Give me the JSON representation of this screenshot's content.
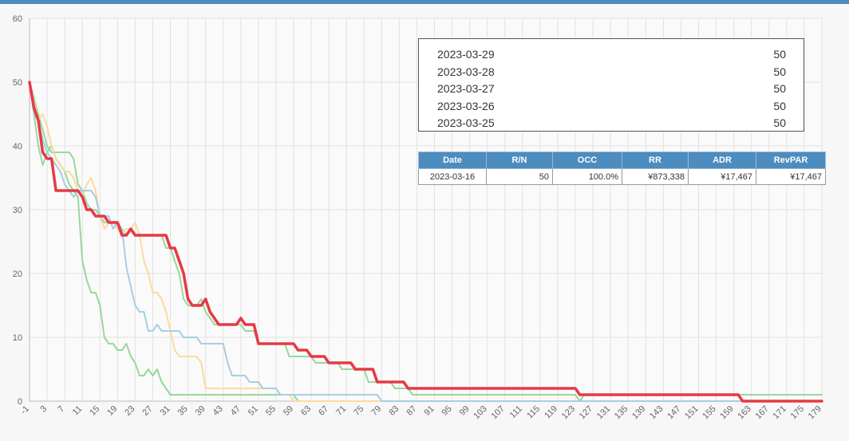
{
  "colors": {
    "topbar": "#4a8cc0",
    "header_bg": "#4d8cbf",
    "grid": "#e2e2e2",
    "axis": "#bbbbbb",
    "tick_text": "#666666"
  },
  "legend": [
    {
      "date": "2023-03-29",
      "value": "50",
      "color": "#e63946"
    },
    {
      "date": "2023-03-28",
      "value": "50",
      "color": "#a6cee3"
    },
    {
      "date": "2023-03-27",
      "value": "50",
      "color": "#fdd9a0"
    },
    {
      "date": "2023-03-26",
      "value": "50",
      "color": "#98d89a"
    },
    {
      "date": "2023-03-25",
      "value": "50",
      "color": "#98d89a"
    }
  ],
  "stats_table": {
    "headers": [
      "Date",
      "R/N",
      "OCC",
      "RR",
      "ADR",
      "RevPAR"
    ],
    "rows": [
      [
        "2023-03-16",
        "50",
        "100.0%",
        "¥873,338",
        "¥17,467",
        "¥17,467"
      ]
    ]
  },
  "chart_data": {
    "type": "line",
    "title": "",
    "xlabel": "",
    "ylabel": "",
    "xlim": [
      -1,
      179
    ],
    "ylim": [
      0,
      60
    ],
    "yticks": [
      0,
      10,
      20,
      30,
      40,
      50,
      60
    ],
    "xticks": [
      -1,
      3,
      7,
      11,
      15,
      19,
      23,
      27,
      31,
      35,
      39,
      43,
      47,
      51,
      55,
      59,
      63,
      67,
      71,
      75,
      79,
      83,
      87,
      91,
      95,
      99,
      103,
      107,
      111,
      115,
      119,
      123,
      127,
      131,
      135,
      139,
      143,
      147,
      151,
      155,
      159,
      163,
      167,
      171,
      175,
      179
    ],
    "grid": true,
    "legend_position": "top-right",
    "series": [
      {
        "color": "#98d89a",
        "points": [
          [
            -1,
            50
          ],
          [
            0,
            45
          ],
          [
            1,
            40
          ],
          [
            2,
            37
          ],
          [
            3,
            39
          ],
          [
            4,
            40
          ],
          [
            5,
            38
          ],
          [
            6,
            37
          ],
          [
            7,
            36
          ],
          [
            8,
            34
          ],
          [
            9,
            33
          ],
          [
            10,
            32
          ],
          [
            11,
            22
          ],
          [
            12,
            19
          ],
          [
            13,
            17
          ],
          [
            14,
            17
          ],
          [
            15,
            15
          ],
          [
            16,
            10
          ],
          [
            17,
            9
          ],
          [
            18,
            9
          ],
          [
            19,
            8
          ],
          [
            20,
            8
          ],
          [
            21,
            9
          ],
          [
            22,
            7
          ],
          [
            23,
            6
          ],
          [
            24,
            4
          ],
          [
            25,
            4
          ],
          [
            26,
            5
          ],
          [
            27,
            4
          ],
          [
            28,
            5
          ],
          [
            29,
            3
          ],
          [
            30,
            2
          ],
          [
            31,
            1
          ],
          [
            59,
            1
          ],
          [
            60,
            0
          ],
          [
            179,
            0
          ]
        ]
      },
      {
        "color": "#98d89a",
        "points": [
          [
            -1,
            50
          ],
          [
            1,
            45
          ],
          [
            3,
            40
          ],
          [
            4,
            39
          ],
          [
            8,
            39
          ],
          [
            9,
            38
          ],
          [
            10,
            34
          ],
          [
            11,
            33
          ],
          [
            12,
            31
          ],
          [
            13,
            30
          ],
          [
            14,
            30
          ],
          [
            15,
            29
          ],
          [
            16,
            28
          ],
          [
            17,
            28
          ],
          [
            18,
            28
          ],
          [
            19,
            28
          ],
          [
            20,
            27
          ],
          [
            21,
            26
          ],
          [
            22,
            27
          ],
          [
            23,
            26
          ],
          [
            29,
            26
          ],
          [
            30,
            24
          ],
          [
            31,
            24
          ],
          [
            32,
            22
          ],
          [
            33,
            20
          ],
          [
            34,
            16
          ],
          [
            35,
            15
          ],
          [
            36,
            15
          ],
          [
            37,
            15
          ],
          [
            38,
            16
          ],
          [
            39,
            14
          ],
          [
            40,
            13
          ],
          [
            41,
            12
          ],
          [
            47,
            12
          ],
          [
            48,
            11
          ],
          [
            50,
            11
          ],
          [
            51,
            9
          ],
          [
            57,
            9
          ],
          [
            58,
            7
          ],
          [
            63,
            7
          ],
          [
            64,
            6
          ],
          [
            69,
            6
          ],
          [
            70,
            5
          ],
          [
            75,
            5
          ],
          [
            76,
            3
          ],
          [
            81,
            3
          ],
          [
            82,
            2
          ],
          [
            85,
            2
          ],
          [
            86,
            1
          ],
          [
            123,
            1
          ],
          [
            124,
            0
          ],
          [
            125,
            1
          ],
          [
            179,
            1
          ]
        ]
      },
      {
        "color": "#fdd9a0",
        "points": [
          [
            -1,
            50
          ],
          [
            1,
            44
          ],
          [
            2,
            45
          ],
          [
            3,
            43
          ],
          [
            4,
            40
          ],
          [
            5,
            38
          ],
          [
            6,
            37
          ],
          [
            7,
            36
          ],
          [
            8,
            36
          ],
          [
            9,
            35
          ],
          [
            10,
            33
          ],
          [
            11,
            32
          ],
          [
            12,
            34
          ],
          [
            13,
            35
          ],
          [
            14,
            33
          ],
          [
            15,
            29
          ],
          [
            16,
            27
          ],
          [
            17,
            28
          ],
          [
            18,
            28
          ],
          [
            19,
            27
          ],
          [
            20,
            26
          ],
          [
            21,
            27
          ],
          [
            22,
            27
          ],
          [
            23,
            28
          ],
          [
            24,
            26
          ],
          [
            25,
            22
          ],
          [
            26,
            20
          ],
          [
            27,
            17
          ],
          [
            28,
            17
          ],
          [
            29,
            16
          ],
          [
            30,
            14
          ],
          [
            31,
            11
          ],
          [
            32,
            8
          ],
          [
            33,
            7
          ],
          [
            37,
            7
          ],
          [
            38,
            6
          ],
          [
            39,
            2
          ],
          [
            55,
            2
          ],
          [
            56,
            1
          ],
          [
            58,
            1
          ],
          [
            59,
            0
          ],
          [
            179,
            0
          ]
        ]
      },
      {
        "color": "#a6cee3",
        "points": [
          [
            -1,
            50
          ],
          [
            0,
            45
          ],
          [
            1,
            44
          ],
          [
            2,
            41
          ],
          [
            3,
            39
          ],
          [
            4,
            38
          ],
          [
            5,
            37
          ],
          [
            6,
            36
          ],
          [
            7,
            34
          ],
          [
            8,
            33
          ],
          [
            9,
            32
          ],
          [
            10,
            33
          ],
          [
            11,
            33
          ],
          [
            12,
            33
          ],
          [
            13,
            33
          ],
          [
            14,
            32
          ],
          [
            15,
            29
          ],
          [
            16,
            29
          ],
          [
            17,
            29
          ],
          [
            18,
            27
          ],
          [
            19,
            28
          ],
          [
            20,
            27
          ],
          [
            21,
            21
          ],
          [
            22,
            18
          ],
          [
            23,
            15
          ],
          [
            24,
            14
          ],
          [
            25,
            14
          ],
          [
            26,
            11
          ],
          [
            27,
            11
          ],
          [
            28,
            12
          ],
          [
            29,
            11
          ],
          [
            33,
            11
          ],
          [
            34,
            10
          ],
          [
            37,
            10
          ],
          [
            38,
            9
          ],
          [
            43,
            9
          ],
          [
            44,
            6
          ],
          [
            45,
            4
          ],
          [
            48,
            4
          ],
          [
            49,
            3
          ],
          [
            51,
            3
          ],
          [
            52,
            2
          ],
          [
            55,
            2
          ],
          [
            56,
            1
          ],
          [
            78,
            1
          ],
          [
            79,
            0
          ],
          [
            179,
            0
          ]
        ]
      },
      {
        "color": "#e63946",
        "points": [
          [
            -1,
            50
          ],
          [
            0,
            46
          ],
          [
            1,
            44
          ],
          [
            2,
            39
          ],
          [
            3,
            38
          ],
          [
            4,
            38
          ],
          [
            5,
            33
          ],
          [
            10,
            33
          ],
          [
            11,
            32
          ],
          [
            12,
            30
          ],
          [
            13,
            30
          ],
          [
            14,
            29
          ],
          [
            16,
            29
          ],
          [
            17,
            28
          ],
          [
            19,
            28
          ],
          [
            20,
            26
          ],
          [
            21,
            26
          ],
          [
            22,
            27
          ],
          [
            23,
            26
          ],
          [
            30,
            26
          ],
          [
            31,
            24
          ],
          [
            32,
            24
          ],
          [
            33,
            22
          ],
          [
            34,
            20
          ],
          [
            35,
            16
          ],
          [
            36,
            15
          ],
          [
            38,
            15
          ],
          [
            39,
            16
          ],
          [
            40,
            14
          ],
          [
            41,
            13
          ],
          [
            42,
            12
          ],
          [
            46,
            12
          ],
          [
            47,
            13
          ],
          [
            48,
            12
          ],
          [
            50,
            12
          ],
          [
            51,
            9
          ],
          [
            59,
            9
          ],
          [
            60,
            8
          ],
          [
            62,
            8
          ],
          [
            63,
            7
          ],
          [
            66,
            7
          ],
          [
            67,
            6
          ],
          [
            72,
            6
          ],
          [
            73,
            5
          ],
          [
            77,
            5
          ],
          [
            78,
            3
          ],
          [
            84,
            3
          ],
          [
            85,
            2
          ],
          [
            123,
            2
          ],
          [
            124,
            1
          ],
          [
            160,
            1
          ],
          [
            161,
            0
          ],
          [
            179,
            0
          ]
        ]
      }
    ]
  }
}
